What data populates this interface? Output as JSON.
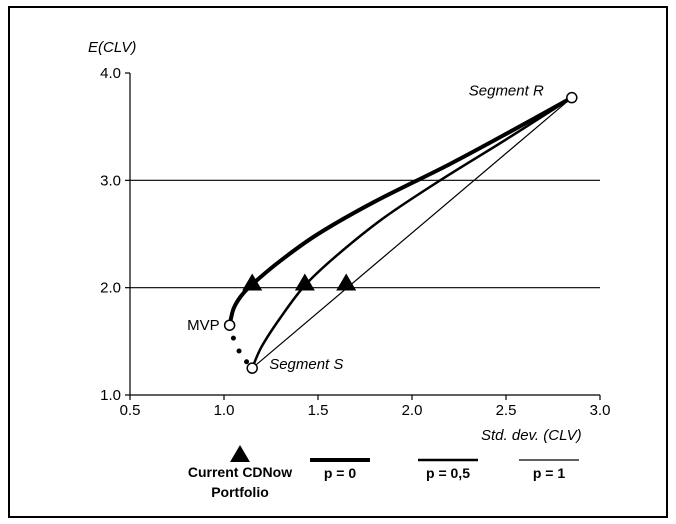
{
  "chart_data": {
    "type": "line",
    "xlabel": "Std. dev. (CLV)",
    "ylabel": "E(CLV)",
    "xlim": [
      0.5,
      3.0
    ],
    "ylim": [
      1.0,
      4.0
    ],
    "x_ticks": [
      "0.5",
      "1.0",
      "1.5",
      "2.0",
      "2.5",
      "3.0"
    ],
    "y_ticks": [
      "1.0",
      "2.0",
      "3.0",
      "4.0"
    ],
    "horizontal_gridlines": [
      2.0,
      3.0
    ],
    "series": [
      {
        "name": "p = 0",
        "points": [
          [
            1.15,
            1.25
          ],
          [
            1.09,
            1.38
          ],
          [
            1.04,
            1.5
          ],
          [
            1.03,
            1.65
          ],
          [
            1.05,
            1.8
          ],
          [
            1.09,
            1.92
          ],
          [
            1.15,
            2.03
          ],
          [
            1.3,
            2.25
          ],
          [
            1.5,
            2.5
          ],
          [
            1.8,
            2.8
          ],
          [
            2.2,
            3.15
          ],
          [
            2.55,
            3.48
          ],
          [
            2.85,
            3.77
          ]
        ]
      },
      {
        "name": "p = 0,5",
        "points": [
          [
            1.15,
            1.25
          ],
          [
            1.2,
            1.45
          ],
          [
            1.3,
            1.72
          ],
          [
            1.43,
            2.02
          ],
          [
            1.6,
            2.3
          ],
          [
            1.85,
            2.65
          ],
          [
            2.15,
            3.0
          ],
          [
            2.5,
            3.38
          ],
          [
            2.85,
            3.77
          ]
        ]
      },
      {
        "name": "p = 1",
        "points": [
          [
            1.15,
            1.25
          ],
          [
            2.85,
            3.77
          ]
        ]
      }
    ],
    "dotted_segment": [
      [
        1.03,
        1.65
      ],
      [
        1.05,
        1.53
      ],
      [
        1.08,
        1.41
      ],
      [
        1.12,
        1.31
      ]
    ],
    "endpoints": [
      {
        "label": "Segment R",
        "x": 2.85,
        "y": 3.77
      },
      {
        "label": "MVP",
        "x": 1.03,
        "y": 1.65
      },
      {
        "label": "Segment S",
        "x": 1.15,
        "y": 1.25
      }
    ],
    "current_portfolio_markers": [
      [
        1.15,
        2.03
      ],
      [
        1.43,
        2.03
      ],
      [
        1.65,
        2.03
      ]
    ],
    "legend": {
      "marker_label_line1": "Current CDNow",
      "marker_label_line2": "Portfolio",
      "entries": [
        "p = 0",
        "p = 0,5",
        "p = 1"
      ],
      "placement": "bottom"
    }
  }
}
